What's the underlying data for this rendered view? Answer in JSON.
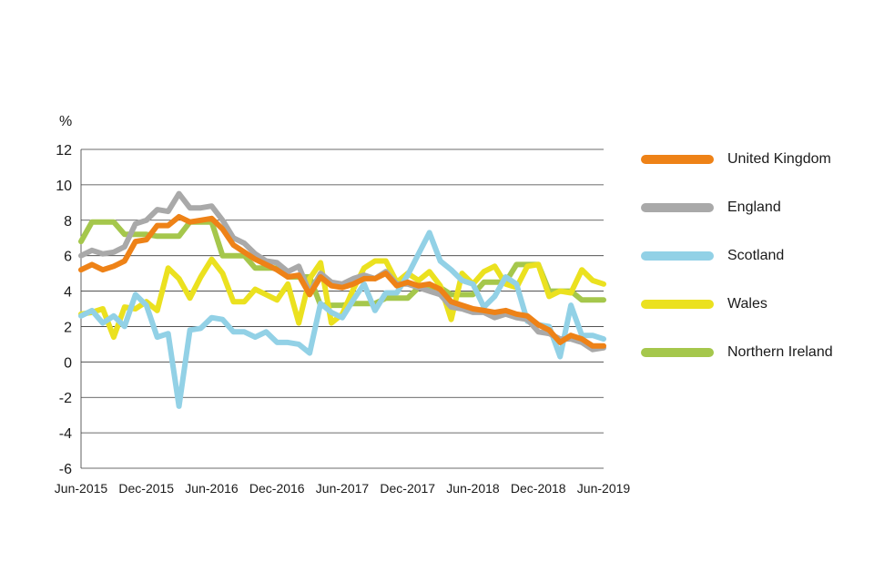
{
  "chart_data": {
    "type": "line",
    "title": "",
    "xlabel": "",
    "ylabel": "%",
    "ylim": [
      -6,
      12
    ],
    "yticks": [
      12,
      10,
      8,
      6,
      4,
      2,
      0,
      -2,
      -4,
      -6
    ],
    "grid": true,
    "legend_position": "right",
    "x_tick_labels": [
      "Jun-2015",
      "Dec-2015",
      "Jun-2016",
      "Dec-2016",
      "Jun-2017",
      "Dec-2017",
      "Jun-2018",
      "Dec-2018",
      "Jun-2019"
    ],
    "x_tick_index": [
      0,
      6,
      12,
      18,
      24,
      30,
      36,
      42,
      48
    ],
    "series": [
      {
        "name": "Northern Ireland",
        "color": "#a5c74c",
        "values": [
          6.8,
          7.9,
          7.9,
          7.9,
          7.2,
          7.2,
          7.2,
          7.1,
          7.1,
          7.1,
          7.9,
          7.9,
          7.9,
          6.0,
          6.0,
          6.0,
          5.3,
          5.3,
          5.3,
          4.8,
          4.8,
          4.8,
          3.2,
          3.2,
          3.2,
          3.3,
          3.3,
          3.3,
          3.6,
          3.6,
          3.6,
          4.2,
          4.2,
          4.2,
          3.8,
          3.8,
          3.8,
          4.5,
          4.5,
          4.5,
          5.5,
          5.5,
          5.5,
          4.0,
          4.0,
          4.0,
          3.5,
          3.5,
          3.5
        ]
      },
      {
        "name": "Wales",
        "color": "#ebe11f",
        "values": [
          2.7,
          2.8,
          3.0,
          1.4,
          3.1,
          3.0,
          3.4,
          2.9,
          5.3,
          4.7,
          3.6,
          4.8,
          5.8,
          5.0,
          3.4,
          3.4,
          4.1,
          3.8,
          3.5,
          4.4,
          2.2,
          4.7,
          5.6,
          2.2,
          2.7,
          4.1,
          5.3,
          5.7,
          5.7,
          4.5,
          5.0,
          4.6,
          5.1,
          4.3,
          2.4,
          5.0,
          4.4,
          5.1,
          5.4,
          4.4,
          4.2,
          5.4,
          5.5,
          3.7,
          4.0,
          3.9,
          5.2,
          4.6,
          4.4
        ]
      },
      {
        "name": "Scotland",
        "color": "#92d1e6",
        "values": [
          2.6,
          2.9,
          2.2,
          2.6,
          2.0,
          3.8,
          3.2,
          1.4,
          1.6,
          -2.5,
          1.8,
          1.9,
          2.5,
          2.4,
          1.7,
          1.7,
          1.4,
          1.7,
          1.1,
          1.1,
          1.0,
          0.5,
          3.3,
          2.8,
          2.5,
          3.5,
          4.4,
          2.9,
          3.9,
          3.9,
          4.9,
          6.1,
          7.3,
          5.7,
          5.2,
          4.6,
          4.4,
          3.1,
          3.7,
          4.8,
          4.4,
          2.3,
          2.1,
          2.0,
          0.3,
          3.2,
          1.5,
          1.5,
          1.3
        ]
      },
      {
        "name": "England",
        "color": "#a9a9a9",
        "values": [
          6.0,
          6.3,
          6.1,
          6.2,
          6.5,
          7.8,
          8.0,
          8.6,
          8.5,
          9.5,
          8.7,
          8.7,
          8.8,
          8.0,
          7.0,
          6.7,
          6.1,
          5.7,
          5.6,
          5.1,
          5.4,
          3.9,
          5.0,
          4.5,
          4.4,
          4.7,
          4.9,
          4.7,
          5.1,
          4.4,
          4.4,
          4.2,
          4.0,
          3.8,
          3.1,
          3.0,
          2.8,
          2.8,
          2.5,
          2.7,
          2.5,
          2.4,
          1.7,
          1.6,
          1.3,
          1.3,
          1.1,
          0.7,
          0.8
        ]
      },
      {
        "name": "United Kingdom",
        "color": "#ee8217",
        "values": [
          5.2,
          5.5,
          5.2,
          5.4,
          5.7,
          6.8,
          6.9,
          7.7,
          7.7,
          8.2,
          7.9,
          8.0,
          8.1,
          7.5,
          6.6,
          6.2,
          5.8,
          5.5,
          5.2,
          4.8,
          4.9,
          3.8,
          4.8,
          4.3,
          4.2,
          4.4,
          4.7,
          4.7,
          5.0,
          4.3,
          4.5,
          4.3,
          4.4,
          4.1,
          3.4,
          3.2,
          3.0,
          2.9,
          2.8,
          2.9,
          2.7,
          2.6,
          2.1,
          1.8,
          1.1,
          1.5,
          1.3,
          0.9,
          0.9
        ]
      }
    ]
  },
  "legend": [
    {
      "label": "United Kingdom",
      "color": "#ee8217"
    },
    {
      "label": "England",
      "color": "#a9a9a9"
    },
    {
      "label": "Scotland",
      "color": "#92d1e6"
    },
    {
      "label": "Wales",
      "color": "#ebe11f"
    },
    {
      "label": "Northern Ireland",
      "color": "#a5c74c"
    }
  ]
}
